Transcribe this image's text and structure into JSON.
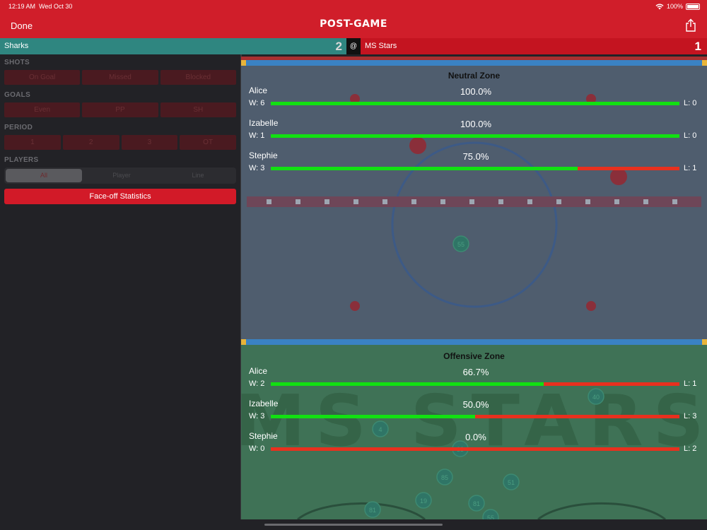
{
  "status": {
    "time": "12:19 AM",
    "date": "Wed Oct 30",
    "battery": "100%"
  },
  "nav": {
    "done_label": "Done",
    "title": "POST-GAME"
  },
  "score": {
    "home_team": "Sharks",
    "home_score": "2",
    "at": "@",
    "away_team": "MS Stars",
    "away_score": "1"
  },
  "filters": {
    "shots": {
      "label": "SHOTS",
      "options": [
        "On Goal",
        "Missed",
        "Blocked"
      ]
    },
    "goals": {
      "label": "GOALS",
      "options": [
        "Even",
        "PP",
        "SH"
      ]
    },
    "period": {
      "label": "PERIOD",
      "options": [
        "1",
        "2",
        "3",
        "OT"
      ]
    },
    "players": {
      "label": "PLAYERS",
      "options": [
        "All",
        "Player",
        "Line"
      ],
      "selected": "All"
    },
    "faceoff_label": "Face-off Statistics"
  },
  "zones": [
    {
      "title": "Neutral Zone",
      "players": [
        {
          "name": "Alice",
          "pct": "100.0%",
          "wins": "W: 6",
          "losses": "L: 0",
          "win_fraction": 1.0
        },
        {
          "name": "Izabelle",
          "pct": "100.0%",
          "wins": "W: 1",
          "losses": "L: 0",
          "win_fraction": 1.0
        },
        {
          "name": "Stephie",
          "pct": "75.0%",
          "wins": "W: 3",
          "losses": "L: 1",
          "win_fraction": 0.75
        }
      ]
    },
    {
      "title": "Offensive Zone",
      "players": [
        {
          "name": "Alice",
          "pct": "66.7%",
          "wins": "W: 2",
          "losses": "L: 1",
          "win_fraction": 0.667
        },
        {
          "name": "Izabelle",
          "pct": "50.0%",
          "wins": "W: 3",
          "losses": "L: 3",
          "win_fraction": 0.5
        },
        {
          "name": "Stephie",
          "pct": "0.0%",
          "wins": "W: 0",
          "losses": "L: 2",
          "win_fraction": 0.0
        }
      ]
    }
  ],
  "watermark": "MS STARS",
  "jersey_markers": [
    "55",
    "40",
    "4",
    "33",
    "85",
    "51",
    "19",
    "81",
    "81",
    "55"
  ],
  "colors": {
    "accent_red": "#d01e2a",
    "home_teal": "#2f8680",
    "win_green": "#12e012",
    "loss_red": "#e8301e"
  }
}
